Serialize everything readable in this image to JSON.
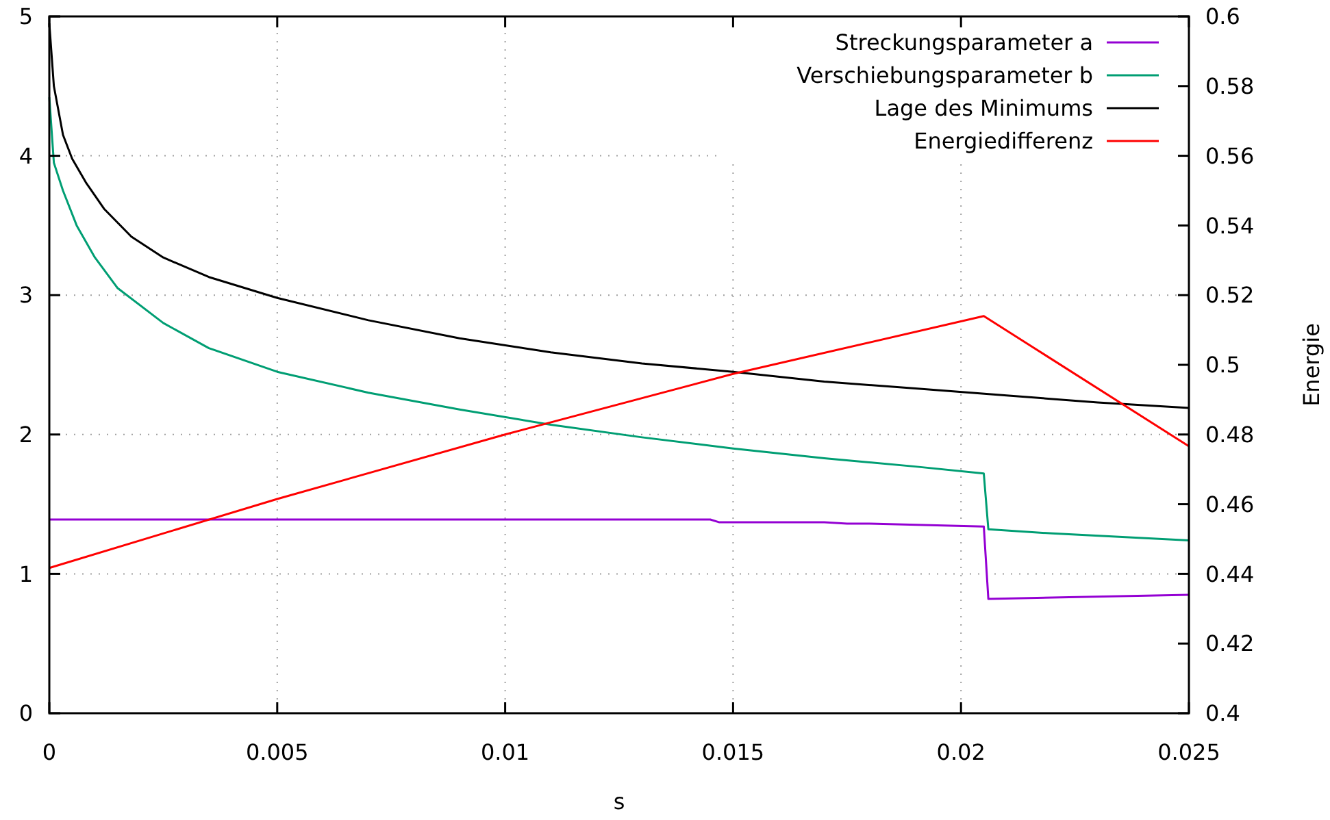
{
  "chart_data": {
    "type": "line",
    "xlabel": "s",
    "y2label": "Energie",
    "xlim": [
      0,
      0.025
    ],
    "xticks": [
      0,
      0.005,
      0.01,
      0.015,
      0.02,
      0.025
    ],
    "ylim": [
      0,
      5
    ],
    "yticks": [
      0,
      1,
      2,
      3,
      4,
      5
    ],
    "y2lim": [
      0.4,
      0.6
    ],
    "y2ticks": [
      0.4,
      0.42,
      0.44,
      0.46,
      0.48,
      0.5,
      0.52,
      0.54,
      0.56,
      0.58,
      0.6
    ],
    "grid": true,
    "legend": "top right",
    "marker": "none",
    "line_style": "solid",
    "series": [
      {
        "name": "Streckungsparameter a",
        "color": "#9400d3",
        "x": [
          0,
          0.0145,
          0.0147,
          0.017,
          0.0175,
          0.018,
          0.0205,
          0.0206,
          0.022,
          0.025
        ],
        "values": [
          1.39,
          1.39,
          1.37,
          1.37,
          1.36,
          1.36,
          1.34,
          0.82,
          0.83,
          0.85
        ]
      },
      {
        "name": "Verschiebungsparameter b",
        "color": "#009e73",
        "x": [
          0,
          0.0001,
          0.0003,
          0.0006,
          0.001,
          0.0015,
          0.0025,
          0.0035,
          0.005,
          0.007,
          0.009,
          0.011,
          0.013,
          0.015,
          0.017,
          0.019,
          0.0205,
          0.0206,
          0.022,
          0.025
        ],
        "values": [
          4.42,
          3.95,
          3.75,
          3.5,
          3.27,
          3.05,
          2.8,
          2.62,
          2.45,
          2.3,
          2.18,
          2.07,
          1.98,
          1.9,
          1.83,
          1.77,
          1.72,
          1.32,
          1.29,
          1.24
        ]
      },
      {
        "name": "Lage des Minimums",
        "color": "#000000",
        "x": [
          0,
          0.0001,
          0.0003,
          0.0005,
          0.0008,
          0.0012,
          0.0018,
          0.0025,
          0.0035,
          0.005,
          0.007,
          0.009,
          0.011,
          0.013,
          0.015,
          0.017,
          0.019,
          0.021,
          0.023,
          0.025
        ],
        "values": [
          4.95,
          4.5,
          4.15,
          3.98,
          3.81,
          3.62,
          3.42,
          3.27,
          3.13,
          2.98,
          2.82,
          2.69,
          2.59,
          2.51,
          2.45,
          2.38,
          2.33,
          2.28,
          2.23,
          2.19
        ]
      },
      {
        "name": "Energiedifferenz",
        "color": "#ff0000",
        "axis": "y2",
        "x": [
          0,
          0.005,
          0.01,
          0.015,
          0.0205,
          0.025
        ],
        "values": [
          0.4417,
          0.4615,
          0.48,
          0.4974,
          0.514,
          0.4766
        ]
      }
    ]
  }
}
